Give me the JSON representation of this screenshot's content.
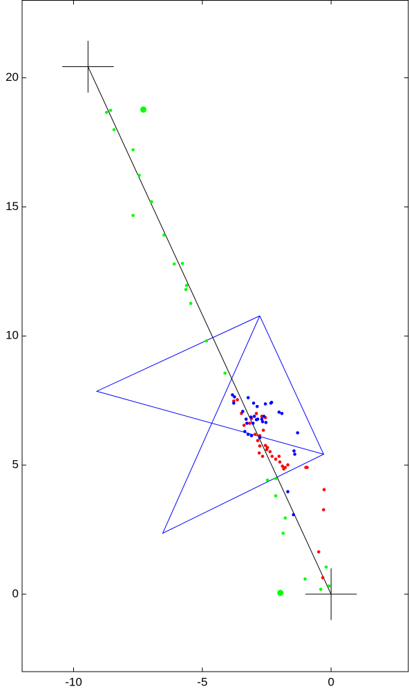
{
  "chart_data": {
    "type": "scatter",
    "xlim": [
      -12,
      3
    ],
    "ylim": [
      -3,
      23
    ],
    "xticks": [
      -10,
      -5,
      0
    ],
    "yticks": [
      0,
      5,
      10,
      15,
      20
    ],
    "series": [
      {
        "mode": "lines",
        "color": "#0000ff",
        "x": [
          -2.77,
          -9.1,
          -0.29,
          -2.77,
          null,
          -2.77,
          -6.54,
          -0.29,
          -2.77
        ],
        "values": [
          10.78,
          7.86,
          5.42,
          10.78,
          null,
          10.78,
          2.36,
          5.42,
          10.78
        ]
      },
      {
        "mode": "lines",
        "color": "#000000",
        "x": [
          -9.44,
          0
        ],
        "values": [
          20.43,
          0
        ]
      },
      {
        "mode": "lines",
        "color": "#000000",
        "x": [
          -10.44,
          -8.44,
          null,
          -9.44,
          -9.44,
          null,
          -1,
          1,
          null,
          0,
          0
        ],
        "values": [
          20.43,
          20.43,
          null,
          19.43,
          21.43,
          null,
          0,
          0,
          null,
          -1,
          1
        ]
      },
      {
        "mode": "markers",
        "marker": "dot",
        "color": "#00ff00",
        "x": [
          -8.72,
          -8.56,
          -8.43,
          -7.69,
          -7.45,
          -6.97,
          -7.69,
          -6.49,
          -6.09,
          -5.77,
          -5.61,
          -5.64,
          -5.45,
          -4.84,
          -4.12,
          -2.47,
          -2.15,
          -2.15,
          -1.78,
          -1.86,
          -1.01,
          -0.4,
          -0.19,
          -0.08
        ],
        "values": [
          18.66,
          18.74,
          17.99,
          17.21,
          16.22,
          15.2,
          14.67,
          13.91,
          12.79,
          12.81,
          11.96,
          11.8,
          11.26,
          9.81,
          8.56,
          4.42,
          4.48,
          3.81,
          2.95,
          2.36,
          0.59,
          0.19,
          1.05,
          0.32
        ]
      },
      {
        "mode": "markers",
        "marker": "large-dot",
        "color": "#00ff00",
        "x": [
          -7.29,
          -1.97
        ],
        "values": [
          18.77,
          0.05
        ]
      },
      {
        "mode": "markers",
        "marker": "dot",
        "color": "#ff0000",
        "x": [
          -3.78,
          -3.64,
          -3.48,
          -3.3,
          -3.16,
          -3.38,
          -3.09,
          -2.9,
          -2.69,
          -2.55,
          -2.95,
          -2.63,
          -2.85,
          -2.77,
          -2.79,
          -2.66,
          -2.47,
          -2.37,
          -2.29,
          -2.15,
          -1.99,
          -1.89,
          -1.78,
          -1.84,
          -1.68,
          -2.02,
          -2.5,
          -0.98,
          -0.93,
          -0.27,
          -0.29,
          -0.48,
          -0.32,
          -2.77,
          -2.55
        ],
        "values": [
          7.48,
          7.53,
          7.0,
          6.78,
          6.62,
          6.54,
          6.81,
          7.0,
          6.89,
          6.84,
          6.19,
          6.35,
          5.95,
          5.74,
          5.47,
          5.34,
          5.68,
          5.52,
          5.34,
          5.23,
          5.12,
          4.96,
          4.91,
          4.85,
          5.01,
          5.34,
          5.6,
          4.91,
          4.91,
          4.05,
          3.27,
          1.64,
          0.64,
          6.14,
          5.76
        ]
      },
      {
        "mode": "markers",
        "marker": "dot",
        "color": "#0000ff",
        "x": [
          -3.83,
          -3.75,
          -3.78,
          -3.22,
          -3.01,
          -2.87,
          -2.55,
          -2.34,
          -3.11,
          -2.98,
          -2.85,
          -2.69,
          -2.61,
          -3.3,
          -3.27,
          -3.35,
          -3.22,
          -3.09,
          -2.77,
          -2.31,
          -2.02,
          -1.91,
          -1.3,
          -1.44,
          -1.41,
          -1.68,
          -1.46,
          -2.9,
          -3.03,
          -2.66,
          -2.53,
          -3.43
        ],
        "values": [
          7.72,
          7.64,
          7.4,
          7.61,
          7.4,
          7.27,
          7.37,
          7.4,
          6.86,
          6.89,
          6.78,
          6.78,
          6.89,
          6.78,
          6.62,
          6.3,
          6.19,
          6.14,
          6.06,
          7.43,
          7.05,
          7.0,
          6.25,
          5.55,
          5.42,
          3.97,
          3.08,
          6.76,
          6.62,
          6.68,
          6.65,
          7.08
        ]
      }
    ]
  }
}
